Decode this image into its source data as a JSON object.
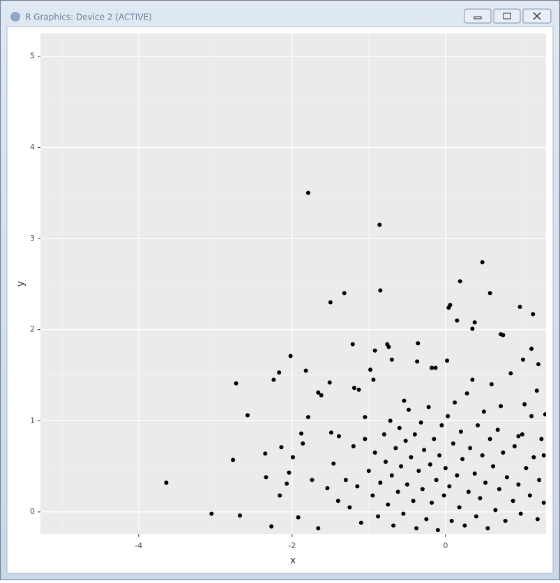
{
  "window": {
    "title": "R Graphics: Device 2 (ACTIVE)"
  },
  "chart_data": {
    "type": "scatter",
    "xlabel": "x",
    "ylabel": "y",
    "xlim": [
      -5.28,
      1.31
    ],
    "ylim": [
      -0.245,
      5.25
    ],
    "xticks": [
      -4,
      -2,
      0
    ],
    "yticks": [
      0,
      1,
      2,
      3,
      4,
      5
    ],
    "grid": true,
    "minor_grid": true,
    "color": "#000000",
    "x": [
      -3.64,
      -3.05,
      -2.68,
      -2.77,
      -2.73,
      -2.58,
      -2.35,
      -2.34,
      -2.24,
      -2.17,
      -2.16,
      -2.14,
      -2.27,
      -2.07,
      -2.02,
      -2.04,
      -1.99,
      -1.92,
      -1.79,
      -1.82,
      -1.88,
      -1.86,
      -1.79,
      -1.66,
      -1.62,
      -1.5,
      -1.51,
      -1.49,
      -1.32,
      -1.46,
      -1.39,
      -1.66,
      -1.74,
      -1.54,
      -1.21,
      -1.19,
      -1.13,
      -1.05,
      -0.98,
      -0.94,
      -0.86,
      -0.85,
      -0.92,
      -0.76,
      -0.74,
      -0.7,
      -0.54,
      -0.36,
      -0.37,
      -0.18,
      -0.13,
      0.02,
      0.04,
      0.06,
      0.15,
      0.19,
      0.38,
      0.35,
      0.48,
      0.58,
      0.97,
      1.14,
      0.72,
      0.75,
      1.12,
      1.01,
      1.21,
      1.19,
      1.03,
      1.3,
      0.95,
      1.28,
      -1.4,
      -1.3,
      -1.25,
      -1.2,
      -1.15,
      -1.1,
      -1.05,
      -1.0,
      -0.95,
      -0.92,
      -0.88,
      -0.85,
      -0.8,
      -0.78,
      -0.75,
      -0.72,
      -0.7,
      -0.68,
      -0.65,
      -0.62,
      -0.6,
      -0.58,
      -0.55,
      -0.52,
      -0.5,
      -0.48,
      -0.45,
      -0.42,
      -0.4,
      -0.38,
      -0.35,
      -0.32,
      -0.3,
      -0.28,
      -0.25,
      -0.22,
      -0.2,
      -0.18,
      -0.15,
      -0.12,
      -0.1,
      -0.08,
      -0.05,
      -0.02,
      0.0,
      0.03,
      0.05,
      0.08,
      0.1,
      0.12,
      0.15,
      0.18,
      0.2,
      0.22,
      0.25,
      0.28,
      0.3,
      0.32,
      0.35,
      0.38,
      0.4,
      0.42,
      0.45,
      0.48,
      0.5,
      0.52,
      0.55,
      0.58,
      0.6,
      0.62,
      0.65,
      0.68,
      0.7,
      0.72,
      0.75,
      0.78,
      0.8,
      0.85,
      0.88,
      0.9,
      0.95,
      0.98,
      1.0,
      1.05,
      1.1,
      1.12,
      1.15,
      1.2,
      1.22,
      1.25,
      1.28
    ],
    "y": [
      0.32,
      -0.02,
      -0.04,
      0.57,
      1.41,
      1.06,
      0.64,
      0.38,
      1.45,
      1.53,
      0.18,
      0.71,
      -0.16,
      0.31,
      1.71,
      0.43,
      0.6,
      -0.06,
      3.5,
      1.55,
      0.86,
      0.75,
      1.04,
      1.31,
      1.28,
      2.3,
      1.42,
      0.87,
      2.4,
      0.53,
      0.83,
      -0.18,
      0.35,
      0.26,
      1.84,
      1.36,
      1.34,
      1.04,
      1.56,
      1.45,
      3.15,
      2.43,
      1.77,
      1.84,
      1.81,
      1.67,
      1.22,
      1.85,
      1.65,
      1.58,
      1.58,
      1.66,
      2.24,
      2.27,
      2.1,
      2.53,
      2.08,
      2.01,
      2.74,
      2.4,
      2.25,
      2.17,
      1.95,
      1.94,
      1.79,
      1.67,
      1.62,
      1.33,
      1.18,
      1.07,
      0.83,
      0.62,
      0.12,
      0.35,
      0.05,
      0.72,
      0.28,
      -0.12,
      0.8,
      0.45,
      0.18,
      0.65,
      -0.05,
      0.32,
      0.85,
      0.55,
      0.08,
      1.0,
      0.4,
      -0.15,
      0.7,
      0.22,
      0.92,
      0.5,
      -0.02,
      0.78,
      0.3,
      1.12,
      0.6,
      0.12,
      0.85,
      -0.18,
      0.45,
      0.98,
      0.25,
      0.68,
      -0.08,
      1.15,
      0.52,
      0.1,
      0.8,
      0.35,
      -0.2,
      0.62,
      0.95,
      0.18,
      0.48,
      1.05,
      0.28,
      -0.1,
      0.75,
      1.2,
      0.4,
      0.05,
      0.88,
      0.58,
      -0.15,
      1.3,
      0.22,
      0.7,
      1.45,
      0.42,
      -0.05,
      0.95,
      0.15,
      0.62,
      1.1,
      0.32,
      -0.18,
      0.8,
      1.4,
      0.5,
      0.02,
      0.9,
      0.25,
      1.16,
      0.65,
      -0.1,
      0.38,
      1.52,
      0.12,
      0.72,
      0.3,
      -0.02,
      0.85,
      0.48,
      0.18,
      1.05,
      0.6,
      -0.08,
      0.35,
      0.8,
      0.1
    ]
  }
}
